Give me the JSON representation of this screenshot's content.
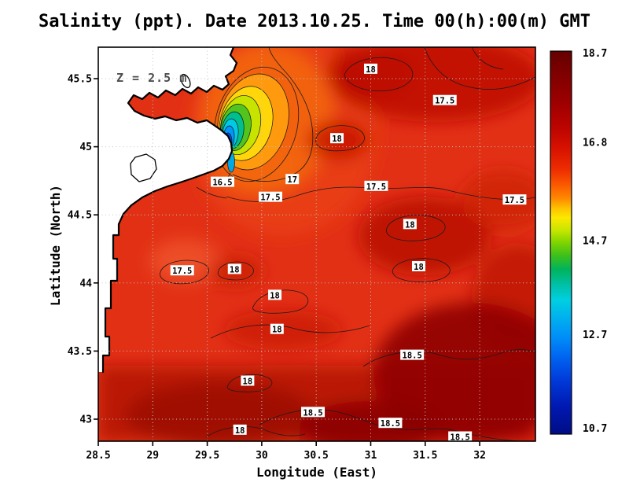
{
  "title": "Salinity (ppt). Date 2013.10.25. Time 00(h):00(m) GMT",
  "annotation": "Z = 2.5 m",
  "axes": {
    "x_label": "Longitude (East)",
    "y_label": "Latitude (North)"
  },
  "chart_data": {
    "type": "heatmap",
    "title": "Salinity (ppt). Date 2013.10.25. Time 00(h):00(m) GMT",
    "variable": "Salinity",
    "units": "ppt",
    "date": "2013.10.25",
    "time": "00(h):00(m) GMT",
    "depth_annotation": "Z = 2.5 m",
    "xlabel": "Longitude (East)",
    "ylabel": "Latitude (North)",
    "xlim": [
      28.5,
      32.5
    ],
    "ylim": [
      42.85,
      45.72
    ],
    "x_ticks": [
      28.5,
      29,
      29.5,
      30,
      30.5,
      31,
      31.5,
      32
    ],
    "y_ticks": [
      45.5,
      45,
      44.5,
      44,
      43.5,
      43
    ],
    "grid": "dotted",
    "colorbar": {
      "min": 10.7,
      "max": 18.7,
      "position": "right",
      "ticks": [
        18.7,
        16.8,
        14.7,
        12.7,
        10.7
      ]
    },
    "contour_interval": 0.5,
    "contour_levels": [
      16.5,
      17,
      17.5,
      18,
      18.5
    ],
    "contour_labels": [
      {
        "t": "18",
        "lon": 31.0,
        "lat": 45.57
      },
      {
        "t": "17.5",
        "lon": 31.68,
        "lat": 45.34
      },
      {
        "t": "18",
        "lon": 30.69,
        "lat": 45.06
      },
      {
        "t": "17",
        "lon": 30.28,
        "lat": 44.76
      },
      {
        "t": "16.5",
        "lon": 29.64,
        "lat": 44.74
      },
      {
        "t": "17.5",
        "lon": 30.08,
        "lat": 44.63
      },
      {
        "t": "17.5",
        "lon": 31.05,
        "lat": 44.71
      },
      {
        "t": "17.5",
        "lon": 32.32,
        "lat": 44.61
      },
      {
        "t": "18",
        "lon": 31.36,
        "lat": 44.43
      },
      {
        "t": "17.5",
        "lon": 29.27,
        "lat": 44.09
      },
      {
        "t": "18",
        "lon": 29.75,
        "lat": 44.1
      },
      {
        "t": "18",
        "lon": 31.44,
        "lat": 44.12
      },
      {
        "t": "18",
        "lon": 30.12,
        "lat": 43.91
      },
      {
        "t": "18",
        "lon": 30.14,
        "lat": 43.66
      },
      {
        "t": "18.5",
        "lon": 31.38,
        "lat": 43.47
      },
      {
        "t": "18",
        "lon": 29.87,
        "lat": 43.28
      },
      {
        "t": "18.5",
        "lon": 30.47,
        "lat": 43.05
      },
      {
        "t": "18.5",
        "lon": 31.18,
        "lat": 42.97
      },
      {
        "t": "18",
        "lon": 29.8,
        "lat": 42.92
      },
      {
        "t": "18.5",
        "lon": 31.82,
        "lat": 42.87
      }
    ],
    "features": {
      "ambient_salinity_range_ppt": [
        17,
        18.7
      ],
      "plume": {
        "lon": 29.85,
        "lat": 45.2,
        "core_salinity_ppt": 10.7,
        "description": "low-salinity river plume at the coast, concentric rings from ~16.5 down to ~10.7 ppt"
      },
      "land": "white landmass with stepped coastline and river delta on the west"
    }
  }
}
